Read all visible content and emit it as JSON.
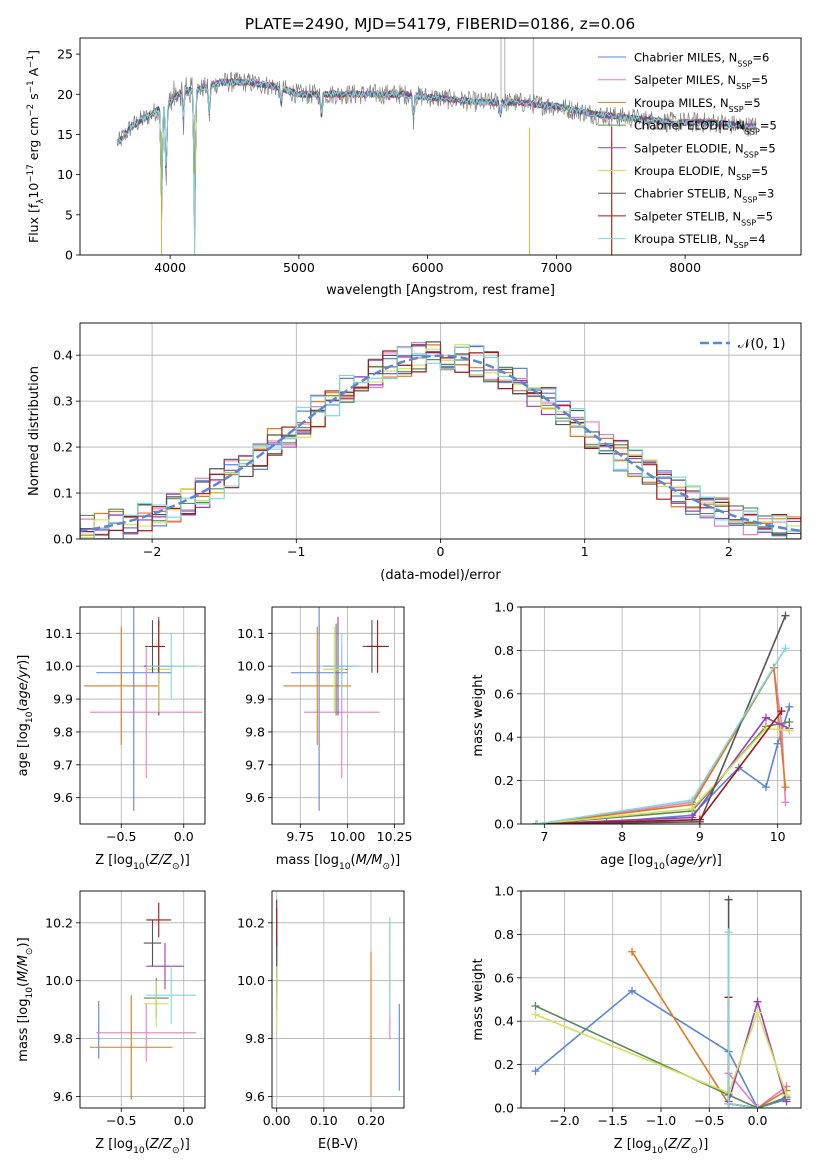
{
  "figure_title": "PLATE=2490, MJD=54179, FIBERID=0186, z=0.06",
  "series_styles": [
    {
      "name": "Chabrier MILES, N_SSP=6",
      "color": "#5b86d6"
    },
    {
      "name": "Salpeter MILES, N_SSP=5",
      "color": "#e77fc0"
    },
    {
      "name": "Kroupa MILES, N_SSP=5",
      "color": "#e07a20"
    },
    {
      "name": "Chabrier ELODIE, N_SSP=5",
      "color": "#5a8a5a"
    },
    {
      "name": "Salpeter ELODIE, N_SSP=5",
      "color": "#9a3fb5"
    },
    {
      "name": "Kroupa ELODIE, N_SSP=5",
      "color": "#d4e05a"
    },
    {
      "name": "Chabrier STELIB, N_SSP=3",
      "color": "#555555"
    },
    {
      "name": "Salpeter STELIB, N_SSP=5",
      "color": "#a01818"
    },
    {
      "name": "Kroupa STELIB, N_SSP=4",
      "color": "#7fd8dc"
    }
  ],
  "chart_data": [
    {
      "id": "spectrum",
      "type": "line",
      "xlabel": "wavelength [Angstrom, rest frame]",
      "ylabel": "Flux [f_λ10^-17 erg cm^-2 s^-1 A^-1]",
      "xlim": [
        3300,
        8900
      ],
      "ylim": [
        0,
        27
      ],
      "xticks": [
        4000,
        5000,
        6000,
        7000,
        8000
      ],
      "yticks": [
        0,
        5,
        10,
        15,
        20,
        25
      ],
      "legend_position": "top-right",
      "series": [
        {
          "name": "Chabrier MILES, N_SSP=6"
        },
        {
          "name": "Salpeter MILES, N_SSP=5"
        },
        {
          "name": "Kroupa MILES, N_SSP=5"
        },
        {
          "name": "Chabrier ELODIE, N_SSP=5"
        },
        {
          "name": "Salpeter ELODIE, N_SSP=5"
        },
        {
          "name": "Kroupa ELODIE, N_SSP=5"
        },
        {
          "name": "Chabrier STELIB, N_SSP=3"
        },
        {
          "name": "Salpeter STELIB, N_SSP=5"
        },
        {
          "name": "Kroupa STELIB, N_SSP=4"
        }
      ],
      "continuum": {
        "x": [
          3600,
          3700,
          3800,
          3900,
          4000,
          4100,
          4200,
          4400,
          4600,
          4800,
          5000,
          5200,
          5500,
          5800,
          6100,
          6400,
          6700,
          7000,
          7300,
          7600,
          7900,
          8200,
          8500
        ],
        "y": [
          14,
          16,
          17,
          18,
          19,
          20.5,
          20.5,
          21.5,
          21.5,
          21,
          20,
          20,
          20,
          20,
          19.5,
          19,
          19,
          18.5,
          17.5,
          17,
          16.5,
          16.5,
          16
        ]
      },
      "absorption_lines": [
        {
          "x": 3934,
          "depth": 14
        },
        {
          "x": 3969,
          "depth": 10
        },
        {
          "x": 4102,
          "depth": 4
        },
        {
          "x": 4190,
          "depth": 20
        },
        {
          "x": 4304,
          "depth": 4
        },
        {
          "x": 4861,
          "depth": 2
        },
        {
          "x": 5175,
          "depth": 3
        },
        {
          "x": 5890,
          "depth": 3
        },
        {
          "x": 6563,
          "depth": 2
        }
      ]
    },
    {
      "id": "residuals",
      "type": "line",
      "xlabel": "(data-model)/error",
      "ylabel": "Normed distribution",
      "xlim": [
        -2.5,
        2.5
      ],
      "ylim": [
        0,
        0.47
      ],
      "xticks": [
        -2,
        -1,
        0,
        1,
        2
      ],
      "yticks": [
        0,
        0.1,
        0.2,
        0.3,
        0.4
      ],
      "grid": true,
      "legend_position": "top-right",
      "gaussian": {
        "name": "𝒩(0, 1)",
        "mean": 0,
        "sigma": 1,
        "color": "#5b86d6"
      },
      "bin_width": 0.1
    },
    {
      "id": "age_vs_Z",
      "type": "scatter",
      "xlabel": "Z [log10(Z/Z☉)]",
      "ylabel": "age [log10(age/yr)]",
      "xlim": [
        -0.83,
        0.17
      ],
      "ylim": [
        9.52,
        10.18
      ],
      "xticks": [
        -0.5,
        0.0
      ],
      "yticks": [
        9.6,
        9.7,
        9.8,
        9.9,
        10.0,
        10.1
      ],
      "grid": true,
      "points": [
        {
          "series": 0,
          "x": -0.4,
          "y": 9.98,
          "xerr": 0.3,
          "yerr": 0.42
        },
        {
          "series": 1,
          "x": -0.3,
          "y": 9.86,
          "xerr": 0.45,
          "yerr": 0.2
        },
        {
          "series": 2,
          "x": -0.5,
          "y": 9.94,
          "xerr": 0.3,
          "yerr": 0.18
        },
        {
          "series": 3,
          "x": -0.2,
          "y": 9.99,
          "xerr": 0.1,
          "yerr": 0.14
        },
        {
          "series": 4,
          "x": -0.2,
          "y": 10.0,
          "xerr": 0.12,
          "yerr": 0.15
        },
        {
          "series": 5,
          "x": -0.2,
          "y": 9.99,
          "xerr": 0.1,
          "yerr": 0.13
        },
        {
          "series": 6,
          "x": -0.25,
          "y": 10.06,
          "xerr": 0.06,
          "yerr": 0.08
        },
        {
          "series": 7,
          "x": -0.2,
          "y": 10.06,
          "xerr": 0.05,
          "yerr": 0.08
        },
        {
          "series": 8,
          "x": -0.1,
          "y": 10.0,
          "xerr": 0.2,
          "yerr": 0.1
        }
      ]
    },
    {
      "id": "age_vs_mass",
      "type": "scatter",
      "xlabel": "mass [log10(M/M☉)]",
      "ylabel": "",
      "xlim": [
        9.6,
        10.3
      ],
      "ylim": [
        9.52,
        10.18
      ],
      "xticks": [
        9.75,
        10.0,
        10.25
      ],
      "yticks": [
        9.6,
        9.7,
        9.8,
        9.9,
        10.0,
        10.1
      ],
      "grid": true,
      "points": [
        {
          "series": 0,
          "x": 9.85,
          "y": 9.98,
          "xerr": 0.15,
          "yerr": 0.42
        },
        {
          "series": 1,
          "x": 9.97,
          "y": 9.86,
          "xerr": 0.2,
          "yerr": 0.2
        },
        {
          "series": 2,
          "x": 9.84,
          "y": 9.94,
          "xerr": 0.18,
          "yerr": 0.18
        },
        {
          "series": 3,
          "x": 9.94,
          "y": 9.99,
          "xerr": 0.06,
          "yerr": 0.14
        },
        {
          "series": 4,
          "x": 9.95,
          "y": 10.0,
          "xerr": 0.08,
          "yerr": 0.15
        },
        {
          "series": 5,
          "x": 9.93,
          "y": 9.99,
          "xerr": 0.06,
          "yerr": 0.13
        },
        {
          "series": 6,
          "x": 10.13,
          "y": 10.06,
          "xerr": 0.05,
          "yerr": 0.08
        },
        {
          "series": 7,
          "x": 10.16,
          "y": 10.06,
          "xerr": 0.06,
          "yerr": 0.08
        },
        {
          "series": 8,
          "x": 9.97,
          "y": 10.0,
          "xerr": 0.1,
          "yerr": 0.1
        }
      ]
    },
    {
      "id": "weight_vs_age",
      "type": "line",
      "xlabel": "age [log10(age/yr)]",
      "ylabel": "mass weight",
      "xlim": [
        6.7,
        10.3
      ],
      "ylim": [
        0,
        1.0
      ],
      "xticks": [
        7,
        8,
        9,
        10
      ],
      "yticks": [
        0,
        0.2,
        0.4,
        0.6,
        0.8,
        1.0
      ],
      "grid": true,
      "series": [
        {
          "series": 0,
          "x": [
            6.9,
            7.8,
            8.9,
            9.5,
            9.85,
            10.0,
            10.15
          ],
          "y": [
            0,
            0.01,
            0.04,
            0.26,
            0.17,
            0.37,
            0.54
          ]
        },
        {
          "series": 1,
          "x": [
            6.9,
            8.9,
            9.95,
            10.05,
            10.1
          ],
          "y": [
            0,
            0.1,
            0.72,
            0.46,
            0.1
          ]
        },
        {
          "series": 2,
          "x": [
            6.9,
            8.9,
            9.95,
            10.1
          ],
          "y": [
            0,
            0.09,
            0.72,
            0.17
          ]
        },
        {
          "series": 3,
          "x": [
            6.9,
            8.9,
            9.85,
            10.15
          ],
          "y": [
            0,
            0.06,
            0.45,
            0.47
          ]
        },
        {
          "series": 4,
          "x": [
            6.9,
            8.9,
            9.85,
            10.15
          ],
          "y": [
            0,
            0.03,
            0.49,
            0.44
          ]
        },
        {
          "series": 5,
          "x": [
            6.9,
            8.9,
            9.85,
            10.15
          ],
          "y": [
            0,
            0.07,
            0.44,
            0.43
          ]
        },
        {
          "series": 6,
          "x": [
            6.9,
            9.0,
            10.1
          ],
          "y": [
            0,
            0.01,
            0.96
          ]
        },
        {
          "series": 7,
          "x": [
            6.9,
            9.0,
            10.05
          ],
          "y": [
            0,
            0.02,
            0.52
          ]
        },
        {
          "series": 8,
          "x": [
            6.9,
            8.9,
            10.1
          ],
          "y": [
            0,
            0.11,
            0.81
          ]
        }
      ]
    },
    {
      "id": "mass_vs_Z",
      "type": "scatter",
      "xlabel": "Z [log10(Z/Z☉)]",
      "ylabel": "mass [log10(M/M☉)]",
      "xlim": [
        -0.83,
        0.17
      ],
      "ylim": [
        9.56,
        10.31
      ],
      "xticks": [
        -0.5,
        0.0
      ],
      "yticks": [
        9.6,
        9.8,
        10.0,
        10.2
      ],
      "grid": true,
      "points": [
        {
          "series": 0,
          "x": -0.68,
          "y": 9.83,
          "xerr": 0.0,
          "yerr": 0.1
        },
        {
          "series": 1,
          "x": -0.3,
          "y": 9.82,
          "xerr": 0.4,
          "yerr": 0.1
        },
        {
          "series": 2,
          "x": -0.42,
          "y": 9.77,
          "xerr": 0.33,
          "yerr": 0.18
        },
        {
          "series": 3,
          "x": -0.22,
          "y": 9.94,
          "xerr": 0.1,
          "yerr": 0.07
        },
        {
          "series": 4,
          "x": -0.15,
          "y": 10.05,
          "xerr": 0.15,
          "yerr": 0.08
        },
        {
          "series": 5,
          "x": -0.22,
          "y": 9.92,
          "xerr": 0.1,
          "yerr": 0.08
        },
        {
          "series": 6,
          "x": -0.25,
          "y": 10.13,
          "xerr": 0.07,
          "yerr": 0.08
        },
        {
          "series": 7,
          "x": -0.2,
          "y": 10.21,
          "xerr": 0.1,
          "yerr": 0.06
        },
        {
          "series": 8,
          "x": -0.1,
          "y": 9.95,
          "xerr": 0.2,
          "yerr": 0.1
        }
      ]
    },
    {
      "id": "mass_vs_EBV",
      "type": "scatter",
      "xlabel": "E(B-V)",
      "ylabel": "",
      "xlim": [
        -0.01,
        0.27
      ],
      "ylim": [
        9.56,
        10.31
      ],
      "xticks": [
        0.0,
        0.1,
        0.2
      ],
      "yticks": [
        9.6,
        9.8,
        10.0,
        10.2
      ],
      "grid": true,
      "points": [
        {
          "series": 0,
          "x": 0.26,
          "y": 9.77,
          "xerr": 0,
          "yerr": 0.15
        },
        {
          "series": 1,
          "x": 0.24,
          "y": 10.0,
          "xerr": 0,
          "yerr": 0.2
        },
        {
          "series": 2,
          "x": 0.2,
          "y": 9.85,
          "xerr": 0,
          "yerr": 0.25
        },
        {
          "series": 3,
          "x": 0.0,
          "y": 10.0,
          "xerr": 0,
          "yerr": 0.1
        },
        {
          "series": 4,
          "x": 0.0,
          "y": 10.05,
          "xerr": 0,
          "yerr": 0.1
        },
        {
          "series": 5,
          "x": 0.0,
          "y": 9.95,
          "xerr": 0,
          "yerr": 0.12
        },
        {
          "series": 6,
          "x": 0.0,
          "y": 10.15,
          "xerr": 0,
          "yerr": 0.1
        },
        {
          "series": 7,
          "x": 0.0,
          "y": 10.2,
          "xerr": 0,
          "yerr": 0.08
        },
        {
          "series": 8,
          "x": 0.24,
          "y": 10.05,
          "xerr": 0,
          "yerr": 0.17
        }
      ]
    },
    {
      "id": "weight_vs_Z",
      "type": "line",
      "xlabel": "Z [log10(Z/Z☉)]",
      "ylabel": "mass weight",
      "xlim": [
        -2.45,
        0.45
      ],
      "ylim": [
        0,
        1.0
      ],
      "xticks": [
        -2.0,
        -1.5,
        -1.0,
        -0.5,
        0.0
      ],
      "yticks": [
        0,
        0.2,
        0.4,
        0.6,
        0.8,
        1.0
      ],
      "grid": true,
      "series": [
        {
          "series": 0,
          "x": [
            -2.3,
            -1.3,
            -0.3,
            0.0,
            0.3
          ],
          "y": [
            0.17,
            0.54,
            0.26,
            0.0,
            0.04
          ]
        },
        {
          "series": 1,
          "x": [
            -0.3,
            0.0,
            0.3
          ],
          "y": [
            0.16,
            0.0,
            0.1
          ]
        },
        {
          "series": 2,
          "x": [
            -1.3,
            -0.3,
            0.0,
            0.3
          ],
          "y": [
            0.72,
            0.02,
            0.0,
            0.08
          ]
        },
        {
          "series": 3,
          "x": [
            -2.3,
            -0.3,
            0.0,
            0.3
          ],
          "y": [
            0.47,
            0.06,
            0.0,
            0.05
          ]
        },
        {
          "series": 4,
          "x": [
            -0.3,
            0.0,
            0.3
          ],
          "y": [
            0.03,
            0.49,
            0.03
          ]
        },
        {
          "series": 5,
          "x": [
            -2.3,
            -0.3,
            0.0,
            0.3
          ],
          "y": [
            0.43,
            0.07,
            0.44,
            0.06
          ]
        },
        {
          "series": 6,
          "x": [
            -0.3,
            -0.3,
            0.0
          ],
          "y": [
            0.96,
            0.02,
            0.0
          ]
        },
        {
          "series": 7,
          "x": [
            -0.3,
            -0.3,
            0.0
          ],
          "y": [
            0.51,
            0.02,
            0.0
          ]
        },
        {
          "series": 8,
          "x": [
            -0.3,
            -0.3,
            0.0
          ],
          "y": [
            0.81,
            0.02,
            0.0
          ]
        }
      ]
    }
  ]
}
